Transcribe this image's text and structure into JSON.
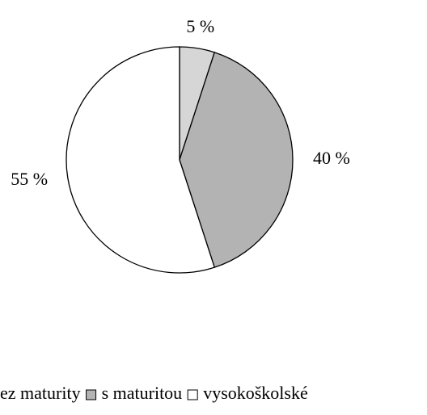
{
  "chart_data": {
    "type": "pie",
    "categories": [
      "ez maturity",
      "s maturitou",
      "vysokoškolské"
    ],
    "values": [
      5,
      40,
      55
    ],
    "value_labels": [
      "5 %",
      "40 %",
      "55 %"
    ],
    "colors": [
      "#d6d6d6",
      "#b3b3b3",
      "#ffffff"
    ],
    "legend": "bottom"
  }
}
